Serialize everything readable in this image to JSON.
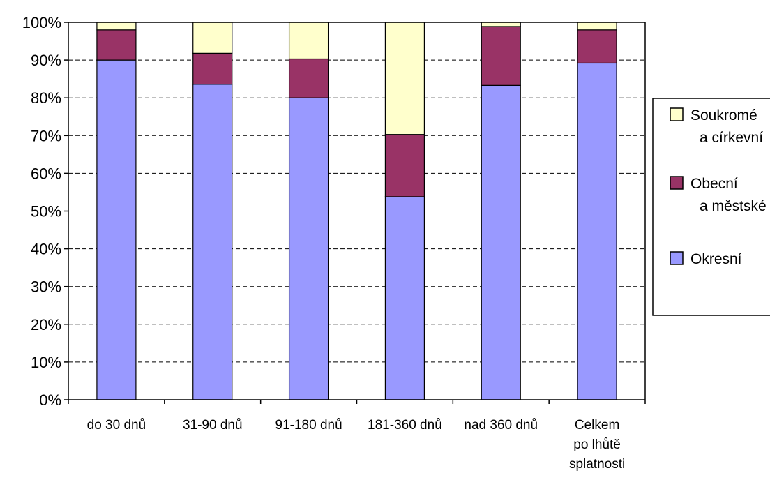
{
  "chart_data": {
    "type": "bar",
    "stacked": "percent",
    "categories": [
      [
        "do 30 dnů"
      ],
      [
        "31-90 dnů"
      ],
      [
        "91-180 dnů"
      ],
      [
        "181-360 dnů"
      ],
      [
        "nad 360 dnů"
      ],
      [
        "Celkem",
        "po lhůtě",
        "splatnosti"
      ]
    ],
    "series": [
      {
        "name": [
          "Okresní"
        ],
        "color": "#9999FF",
        "values": [
          90.0,
          83.6,
          80.0,
          53.8,
          83.3,
          89.2
        ]
      },
      {
        "name": [
          "Obecní",
          "a městské"
        ],
        "color": "#993366",
        "values": [
          8.0,
          8.2,
          10.3,
          16.5,
          15.6,
          8.8
        ]
      },
      {
        "name": [
          "Soukromé",
          "a církevní"
        ],
        "color": "#FFFFCC",
        "values": [
          2.0,
          8.2,
          9.7,
          29.7,
          1.1,
          2.0
        ]
      }
    ],
    "ylim": [
      0,
      100
    ],
    "yticks": [
      "0%",
      "10%",
      "20%",
      "30%",
      "40%",
      "50%",
      "60%",
      "70%",
      "80%",
      "90%",
      "100%"
    ],
    "grid": true,
    "grid_style": "dashed",
    "legend_position": "right"
  }
}
